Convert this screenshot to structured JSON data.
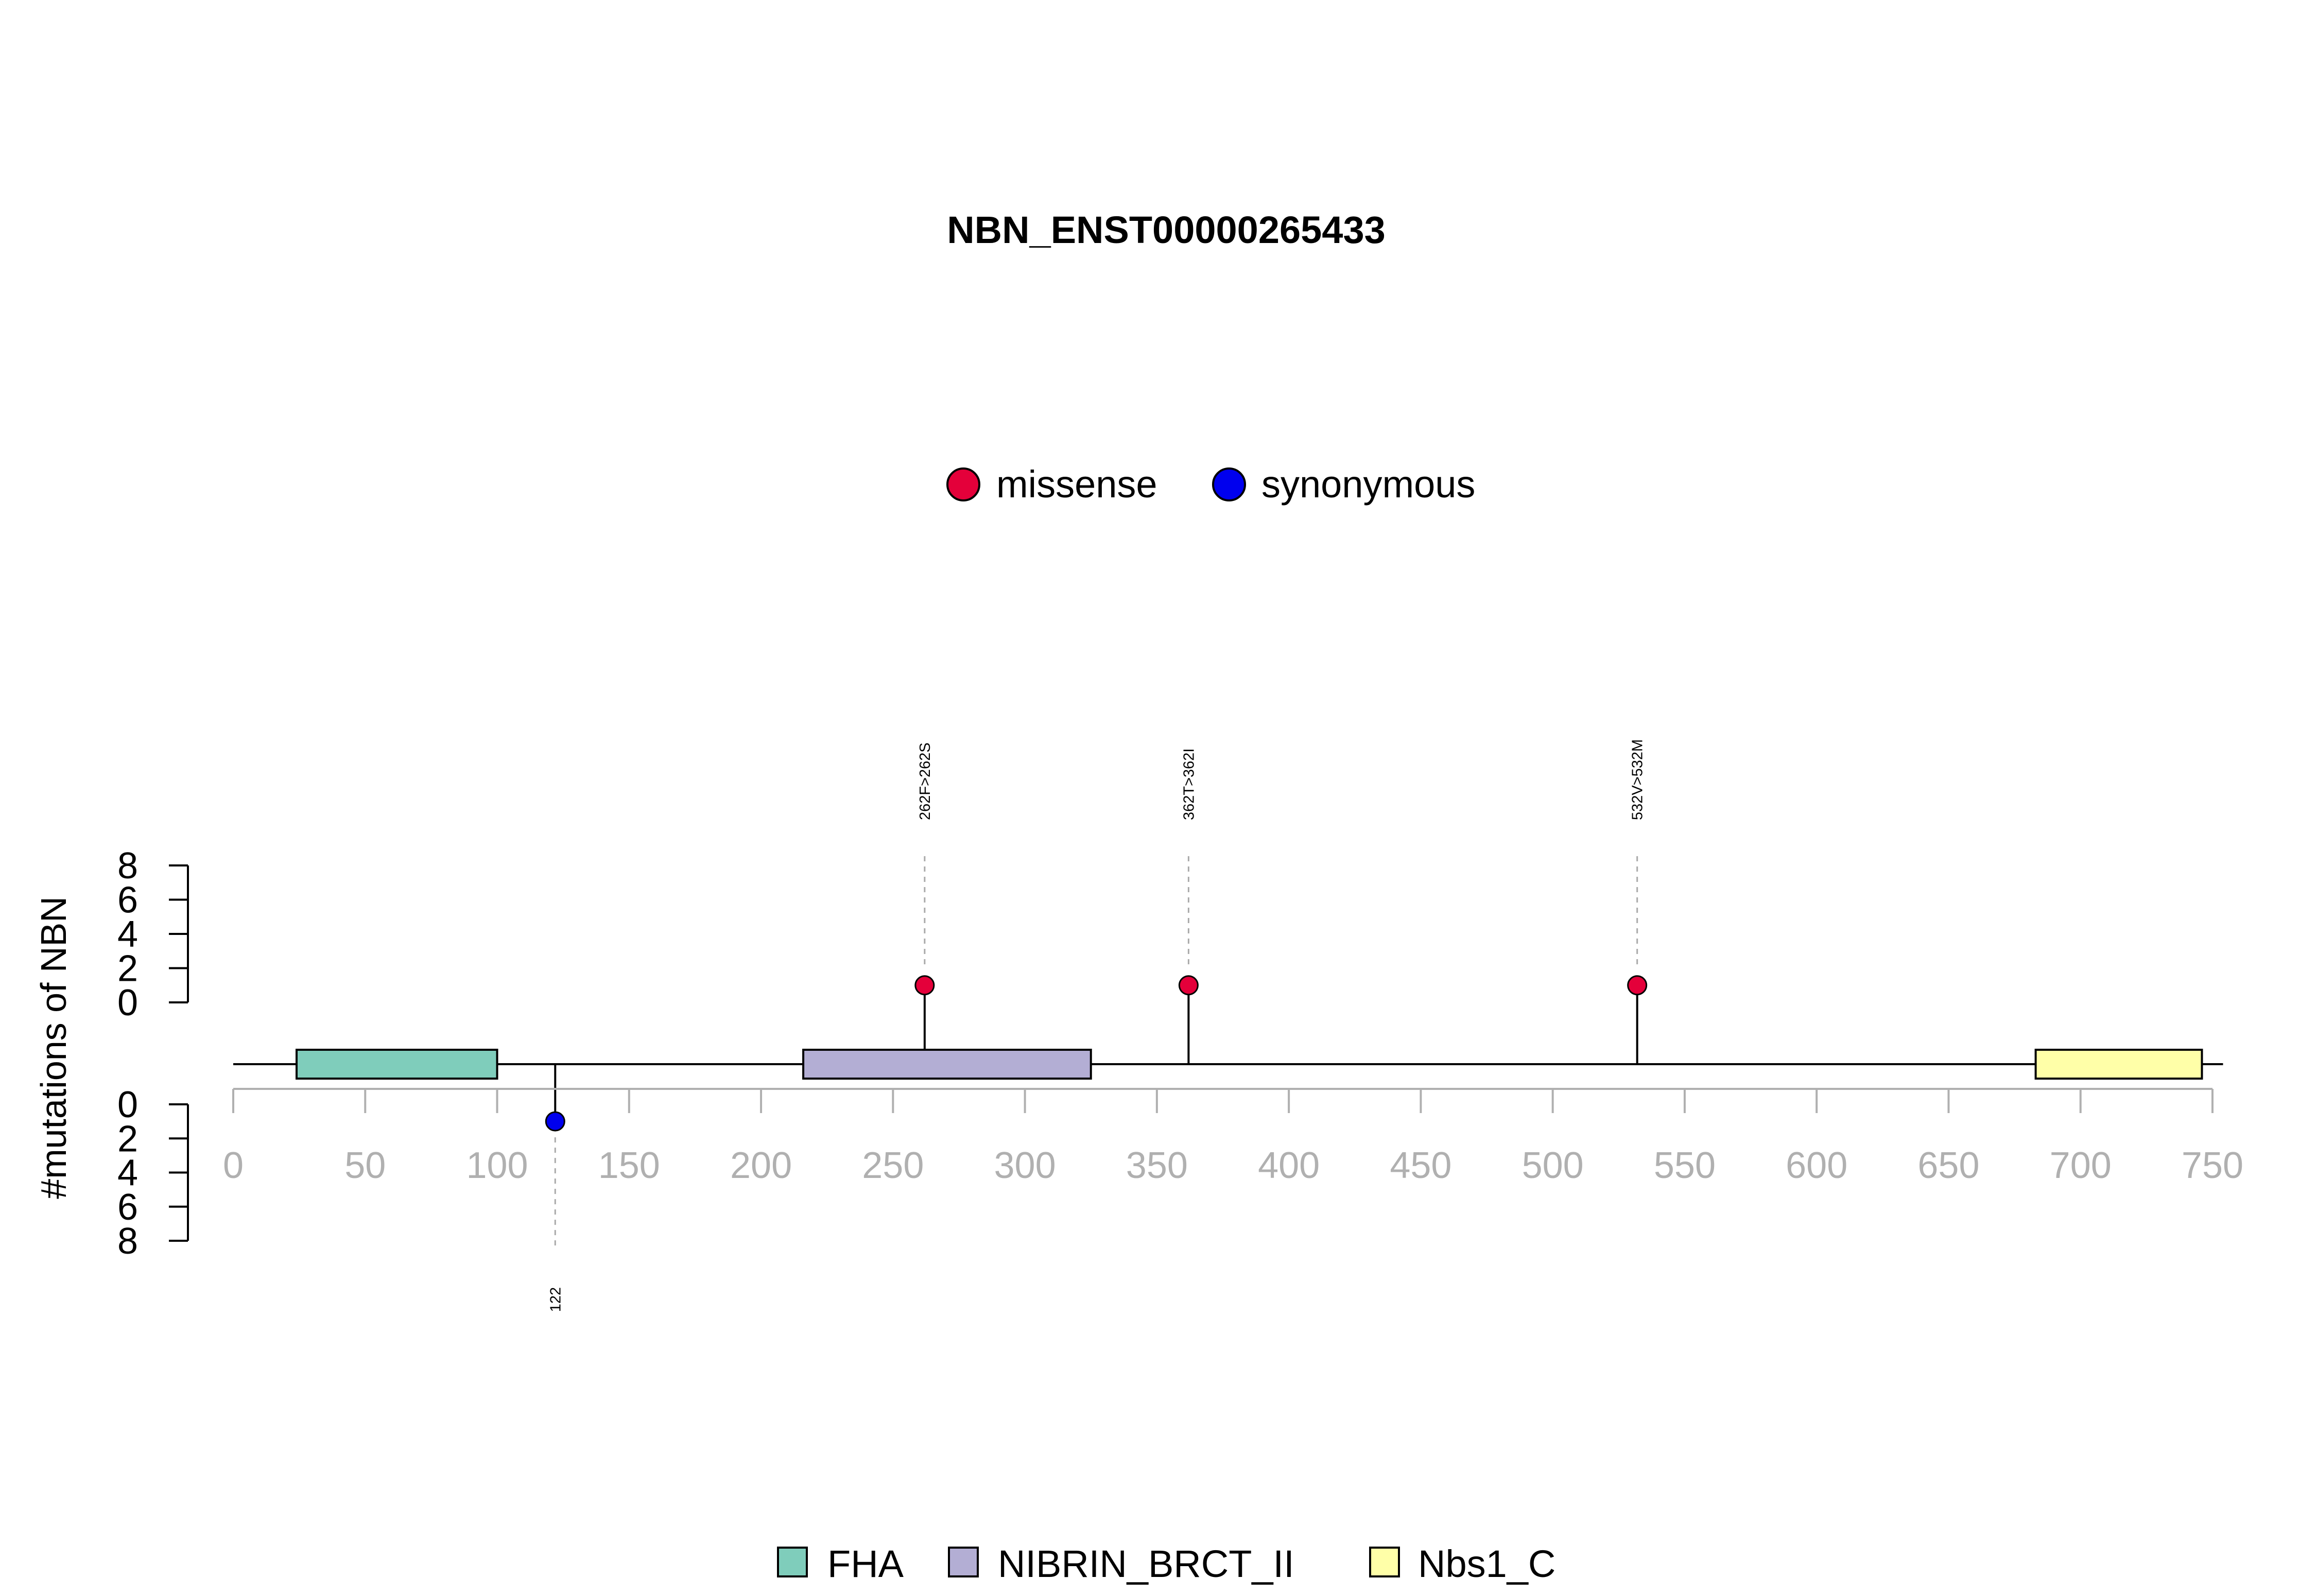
{
  "chart_data": {
    "type": "lollipop",
    "title": "NBN_ENST00000265433",
    "ylabel": "#mutations of NBN",
    "x_ticks": [
      0,
      50,
      100,
      150,
      200,
      250,
      300,
      350,
      400,
      450,
      500,
      550,
      600,
      650,
      700,
      750
    ],
    "xlim": [
      0,
      750
    ],
    "y_ticks": [
      0,
      2,
      4,
      6,
      8
    ],
    "ylim_upper": [
      0,
      8
    ],
    "ylim_lower": [
      0,
      8
    ],
    "protein_length": 754,
    "mutation_legend": [
      {
        "label": "missense",
        "color": "#e4003a"
      },
      {
        "label": "synonymous",
        "color": "#0000ee"
      }
    ],
    "mutations": [
      {
        "position": 262,
        "count": 1,
        "type": "missense",
        "label": "262F>262S",
        "side": "top"
      },
      {
        "position": 362,
        "count": 1,
        "type": "missense",
        "label": "362T>362I",
        "side": "top"
      },
      {
        "position": 532,
        "count": 1,
        "type": "missense",
        "label": "532V>532M",
        "side": "top"
      },
      {
        "position": 122,
        "count": 1,
        "type": "synonymous",
        "label": "122",
        "side": "bottom"
      }
    ],
    "domains": [
      {
        "name": "FHA",
        "start": 24,
        "end": 100,
        "color": "#7fcdbb"
      },
      {
        "name": "NIBRIN_BRCT_II",
        "start": 216,
        "end": 325,
        "color": "#b3aed4"
      },
      {
        "name": "Nbs1_C",
        "start": 683,
        "end": 746,
        "color": "#ffffa8"
      }
    ],
    "domain_legend": [
      {
        "label": "FHA",
        "color": "#7fcdbb"
      },
      {
        "label": "NIBRIN_BRCT_II",
        "color": "#b3aed4"
      },
      {
        "label": "Nbs1_C",
        "color": "#ffffa8"
      }
    ]
  }
}
